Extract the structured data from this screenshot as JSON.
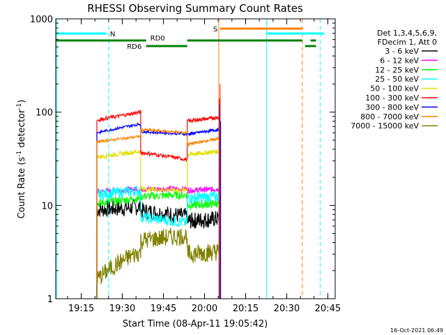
{
  "chart_data": {
    "type": "line",
    "title": "RHESSI Observing Summary Count Rates",
    "xlabel": "Start Time (08-Apr-11 19:05:42)",
    "ylabel_main": "Count Rate (s",
    "ylabel_sup1": "-1",
    "ylabel_mid": " detector",
    "ylabel_sup2": "-1",
    "ylabel_end": ")",
    "y_scale": "log",
    "ylim": [
      1,
      1000
    ],
    "xlim_minutes": [
      0,
      102
    ],
    "x_ticks": [
      {
        "m": 9.3,
        "label": "19:15"
      },
      {
        "m": 24.3,
        "label": "19:30"
      },
      {
        "m": 39.3,
        "label": "19:45"
      },
      {
        "m": 54.3,
        "label": "20:00"
      },
      {
        "m": 69.3,
        "label": "20:15"
      },
      {
        "m": 84.3,
        "label": "20:30"
      },
      {
        "m": 99.3,
        "label": "20:45"
      }
    ],
    "y_ticks": [
      {
        "v": 1,
        "label": "1"
      },
      {
        "v": 10,
        "label": "10"
      },
      {
        "v": 100,
        "label": "100"
      },
      {
        "v": 1000,
        "label": "1000"
      }
    ],
    "segments": [
      [
        15,
        31
      ],
      [
        31,
        48
      ],
      [
        48,
        59.5
      ]
    ],
    "series": [
      {
        "name": "3 - 6 keV",
        "color": "#000000",
        "levels": [
          [
            9.0,
            9.6
          ],
          [
            8.8,
            7.6
          ],
          [
            6.8,
            7.2
          ]
        ],
        "noise": 0.18
      },
      {
        "name": "6 - 12 keV",
        "color": "#ff00ff",
        "levels": [
          [
            14.0,
            15.0
          ],
          [
            15.0,
            15.0
          ],
          [
            14.5,
            15.0
          ]
        ],
        "noise": 0.06
      },
      {
        "name": "12 - 25 keV",
        "color": "#00ff00",
        "levels": [
          [
            10.5,
            12.0
          ],
          [
            12.5,
            13.0
          ],
          [
            10.0,
            10.5
          ]
        ],
        "noise": 0.09
      },
      {
        "name": "25 - 50 keV",
        "color": "#00ffff",
        "levels": [
          [
            13.0,
            14.5
          ],
          [
            7.5,
            6.5
          ],
          [
            12.0,
            12.5
          ]
        ],
        "noise": 0.12
      },
      {
        "name": "50 - 100 keV",
        "color": "#e0e000",
        "levels": [
          [
            33.0,
            38.0
          ],
          [
            15.0,
            14.5
          ],
          [
            35.0,
            38.0
          ]
        ],
        "noise": 0.05
      },
      {
        "name": "100 - 300 keV",
        "color": "#ff0000",
        "levels": [
          [
            82.0,
            100.0
          ],
          [
            37.0,
            31.0
          ],
          [
            80.0,
            88.0
          ]
        ],
        "noise": 0.04
      },
      {
        "name": "300 - 800 keV",
        "color": "#0000ff",
        "levels": [
          [
            60.0,
            75.0
          ],
          [
            62.0,
            58.0
          ],
          [
            58.0,
            65.0
          ]
        ],
        "noise": 0.03
      },
      {
        "name": "800 - 7000 keV",
        "color": "#ff8000",
        "levels": [
          [
            48.0,
            55.0
          ],
          [
            65.0,
            60.0
          ],
          [
            45.0,
            52.0
          ]
        ],
        "noise": 0.03
      },
      {
        "name": "7000 - 15000 keV",
        "color": "#808000",
        "levels": [
          [
            1.6,
            3.2
          ],
          [
            4.2,
            4.8
          ],
          [
            3.0,
            3.2
          ]
        ],
        "noise": 0.2
      }
    ],
    "spike": {
      "m": 59.8,
      "values": [
        120,
        200,
        80
      ]
    },
    "vertical_lines": [
      {
        "m": 0.3,
        "color": "#00ffff",
        "style": "solid"
      },
      {
        "m": 19.3,
        "color": "#00ffff",
        "style": "dashed"
      },
      {
        "m": 59.5,
        "color": "#ff8000",
        "style": "solid"
      },
      {
        "m": 77.0,
        "color": "#00ffff",
        "style": "solid"
      },
      {
        "m": 90.0,
        "color": "#ff8000",
        "style": "dashed"
      },
      {
        "m": 96.5,
        "color": "#00ffff",
        "style": "dashed"
      }
    ],
    "interval_bars": [
      {
        "label": "N",
        "color": "#00ffff",
        "spans": [
          [
            0,
            18.5
          ],
          [
            77,
            98
          ]
        ],
        "row": 0
      },
      {
        "label": "S",
        "color": "#ff8000",
        "spans": [
          [
            60,
            90
          ]
        ],
        "row": -1
      },
      {
        "label": "RD0",
        "color": "#008000",
        "spans": [
          [
            0,
            33
          ],
          [
            48,
            90
          ],
          [
            93,
            95
          ]
        ],
        "row": 1
      },
      {
        "label": "RD6",
        "color": "#008000",
        "spans": [
          [
            33,
            48
          ],
          [
            91,
            95
          ]
        ],
        "row": 2
      }
    ],
    "legend_header": [
      "Det 1,3,4,5,6,9,",
      "FDecim 1, Att 0"
    ],
    "legend_position": "right"
  },
  "stamp": "16-Oct-2021 06:49"
}
